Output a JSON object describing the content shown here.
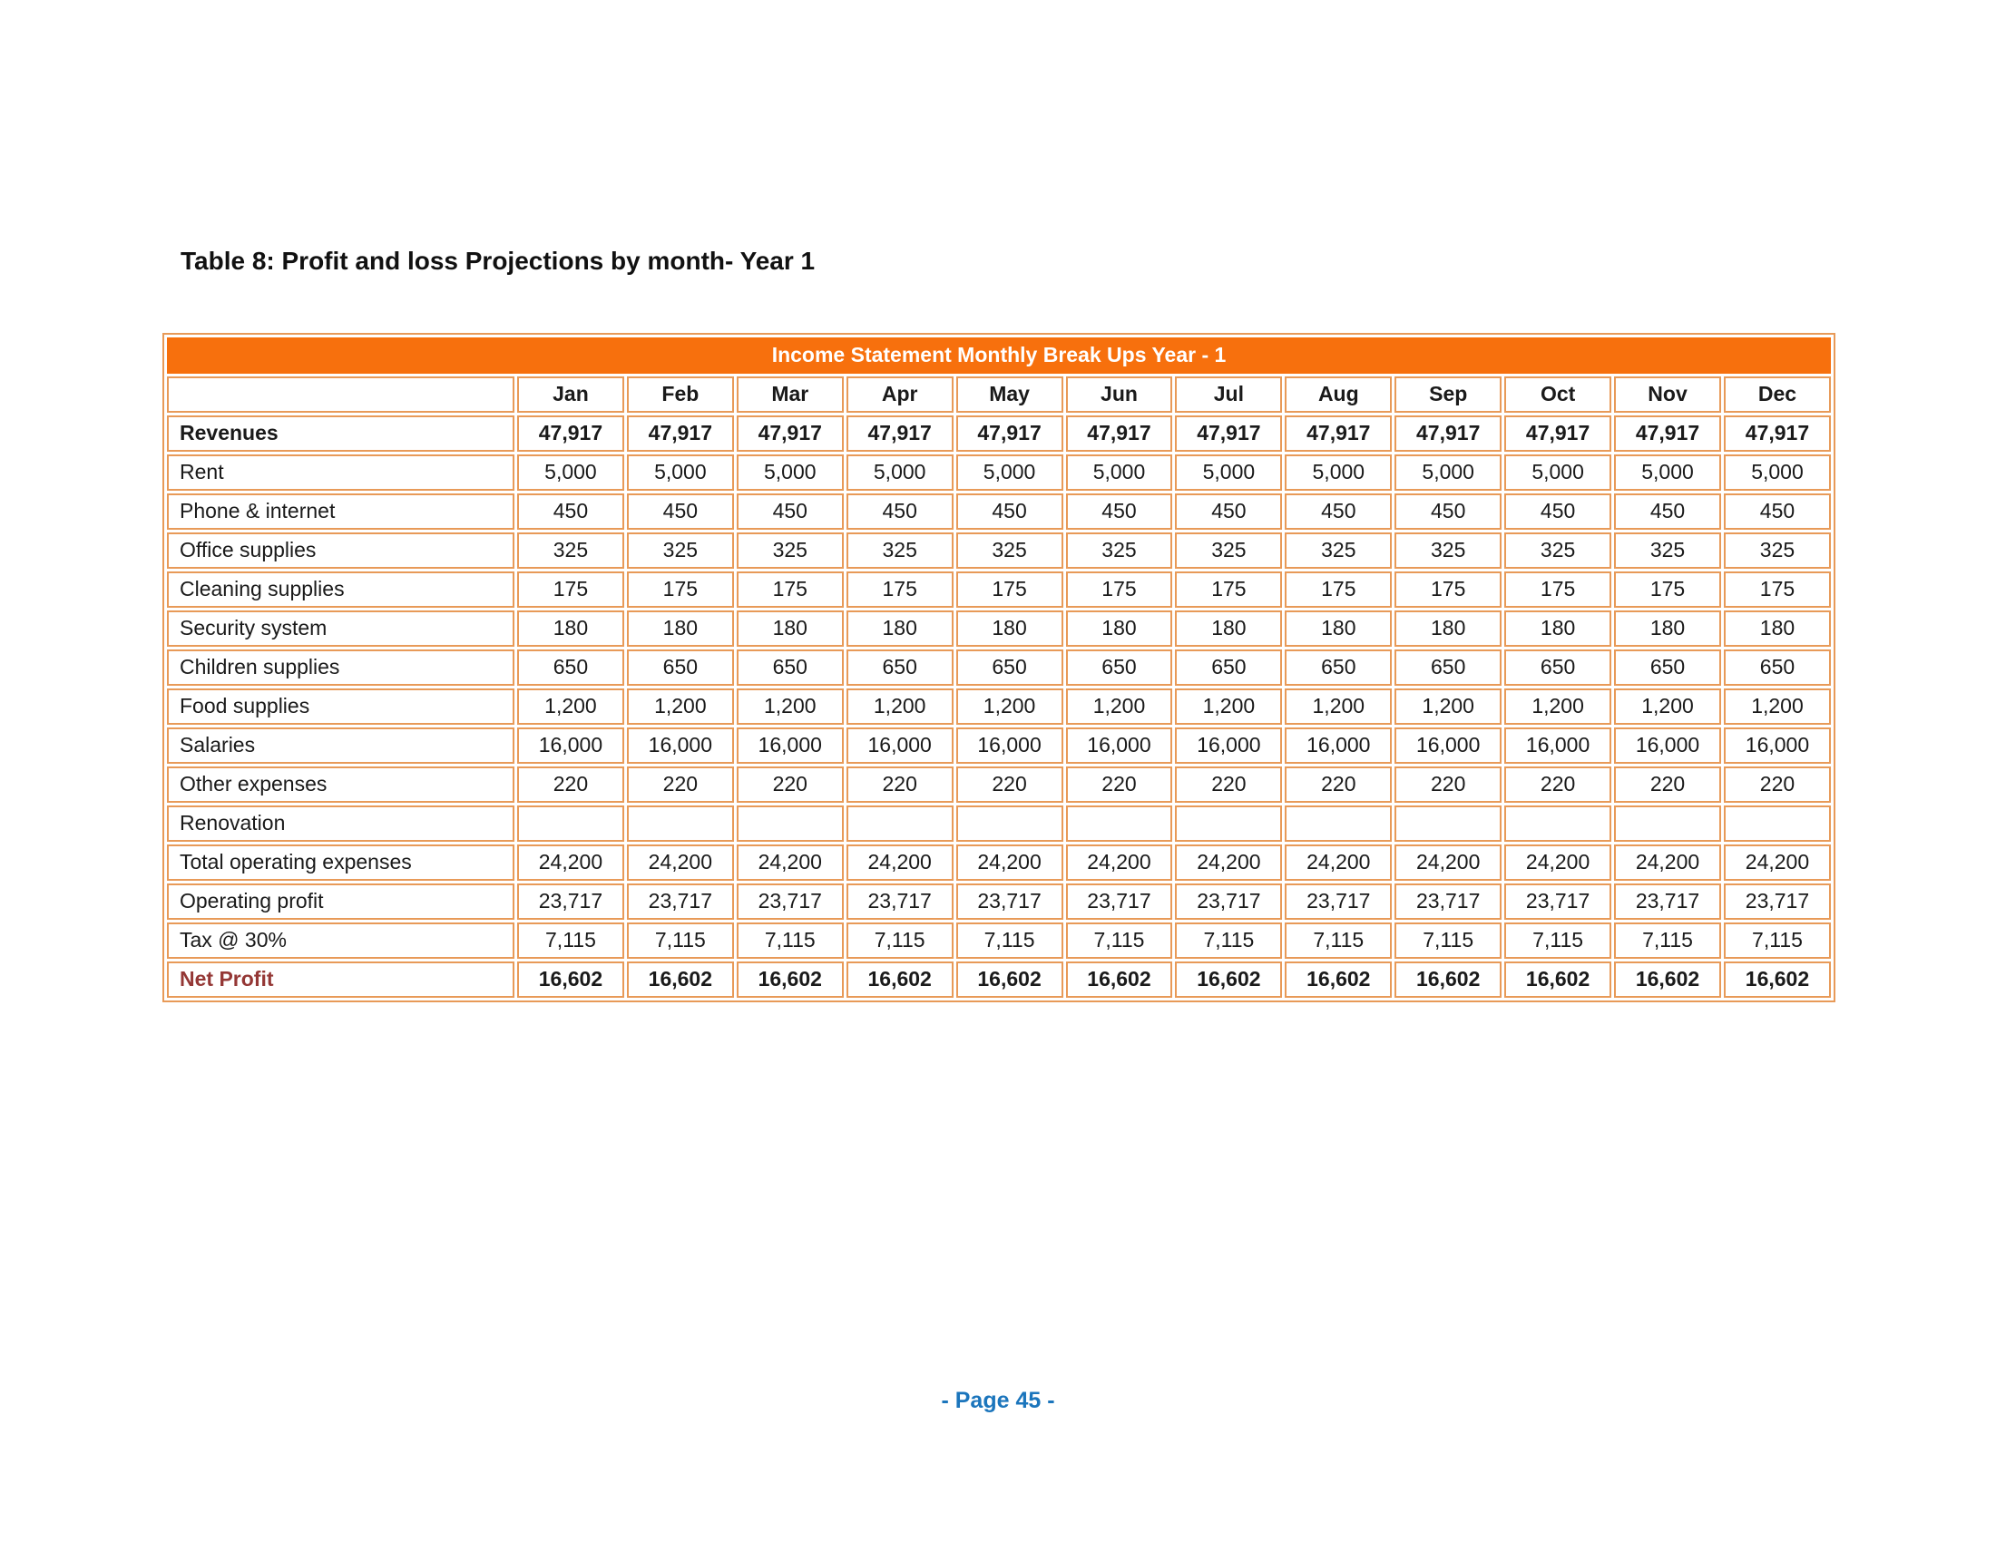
{
  "document": {
    "title": "Table 8: Profit and loss Projections by month- Year 1",
    "footer_page_label": "- Page 45 -"
  },
  "income_table": {
    "banner_title": "Income Statement Monthly Break Ups Year - 1",
    "corner_label": "",
    "months": [
      "Jan",
      "Feb",
      "Mar",
      "Apr",
      "May",
      "Jun",
      "Jul",
      "Aug",
      "Sep",
      "Oct",
      "Nov",
      "Dec"
    ],
    "rows": [
      {
        "label": "Revenues",
        "emphasis": "bold",
        "values": [
          "47,917",
          "47,917",
          "47,917",
          "47,917",
          "47,917",
          "47,917",
          "47,917",
          "47,917",
          "47,917",
          "47,917",
          "47,917",
          "47,917"
        ]
      },
      {
        "label": "Rent",
        "values": [
          "5,000",
          "5,000",
          "5,000",
          "5,000",
          "5,000",
          "5,000",
          "5,000",
          "5,000",
          "5,000",
          "5,000",
          "5,000",
          "5,000"
        ]
      },
      {
        "label": "Phone & internet",
        "values": [
          "450",
          "450",
          "450",
          "450",
          "450",
          "450",
          "450",
          "450",
          "450",
          "450",
          "450",
          "450"
        ]
      },
      {
        "label": "Office supplies",
        "values": [
          "325",
          "325",
          "325",
          "325",
          "325",
          "325",
          "325",
          "325",
          "325",
          "325",
          "325",
          "325"
        ]
      },
      {
        "label": "Cleaning supplies",
        "values": [
          "175",
          "175",
          "175",
          "175",
          "175",
          "175",
          "175",
          "175",
          "175",
          "175",
          "175",
          "175"
        ]
      },
      {
        "label": "Security system",
        "values": [
          "180",
          "180",
          "180",
          "180",
          "180",
          "180",
          "180",
          "180",
          "180",
          "180",
          "180",
          "180"
        ]
      },
      {
        "label": "Children supplies",
        "values": [
          "650",
          "650",
          "650",
          "650",
          "650",
          "650",
          "650",
          "650",
          "650",
          "650",
          "650",
          "650"
        ]
      },
      {
        "label": "Food supplies",
        "values": [
          "1,200",
          "1,200",
          "1,200",
          "1,200",
          "1,200",
          "1,200",
          "1,200",
          "1,200",
          "1,200",
          "1,200",
          "1,200",
          "1,200"
        ]
      },
      {
        "label": "Salaries",
        "values": [
          "16,000",
          "16,000",
          "16,000",
          "16,000",
          "16,000",
          "16,000",
          "16,000",
          "16,000",
          "16,000",
          "16,000",
          "16,000",
          "16,000"
        ]
      },
      {
        "label": "Other expenses",
        "values": [
          "220",
          "220",
          "220",
          "220",
          "220",
          "220",
          "220",
          "220",
          "220",
          "220",
          "220",
          "220"
        ]
      },
      {
        "label": "Renovation",
        "values": [
          "",
          "",
          "",
          "",
          "",
          "",
          "",
          "",
          "",
          "",
          "",
          ""
        ]
      },
      {
        "label": "Total operating expenses",
        "values": [
          "24,200",
          "24,200",
          "24,200",
          "24,200",
          "24,200",
          "24,200",
          "24,200",
          "24,200",
          "24,200",
          "24,200",
          "24,200",
          "24,200"
        ]
      },
      {
        "label": "Operating profit",
        "values": [
          "23,717",
          "23,717",
          "23,717",
          "23,717",
          "23,717",
          "23,717",
          "23,717",
          "23,717",
          "23,717",
          "23,717",
          "23,717",
          "23,717"
        ]
      },
      {
        "label": "Tax @ 30%",
        "values": [
          "7,115",
          "7,115",
          "7,115",
          "7,115",
          "7,115",
          "7,115",
          "7,115",
          "7,115",
          "7,115",
          "7,115",
          "7,115",
          "7,115"
        ]
      },
      {
        "label": "Net Profit",
        "emphasis": "bold",
        "label_style": "net-profit",
        "values": [
          "16,602",
          "16,602",
          "16,602",
          "16,602",
          "16,602",
          "16,602",
          "16,602",
          "16,602",
          "16,602",
          "16,602",
          "16,602",
          "16,602"
        ]
      }
    ]
  },
  "colors": {
    "banner_background": "#F7700D",
    "table_border": "#E89A58",
    "net_profit_label": "#943735",
    "footer_blue": "#1B75BC",
    "body_text": "#1A1A1A"
  }
}
